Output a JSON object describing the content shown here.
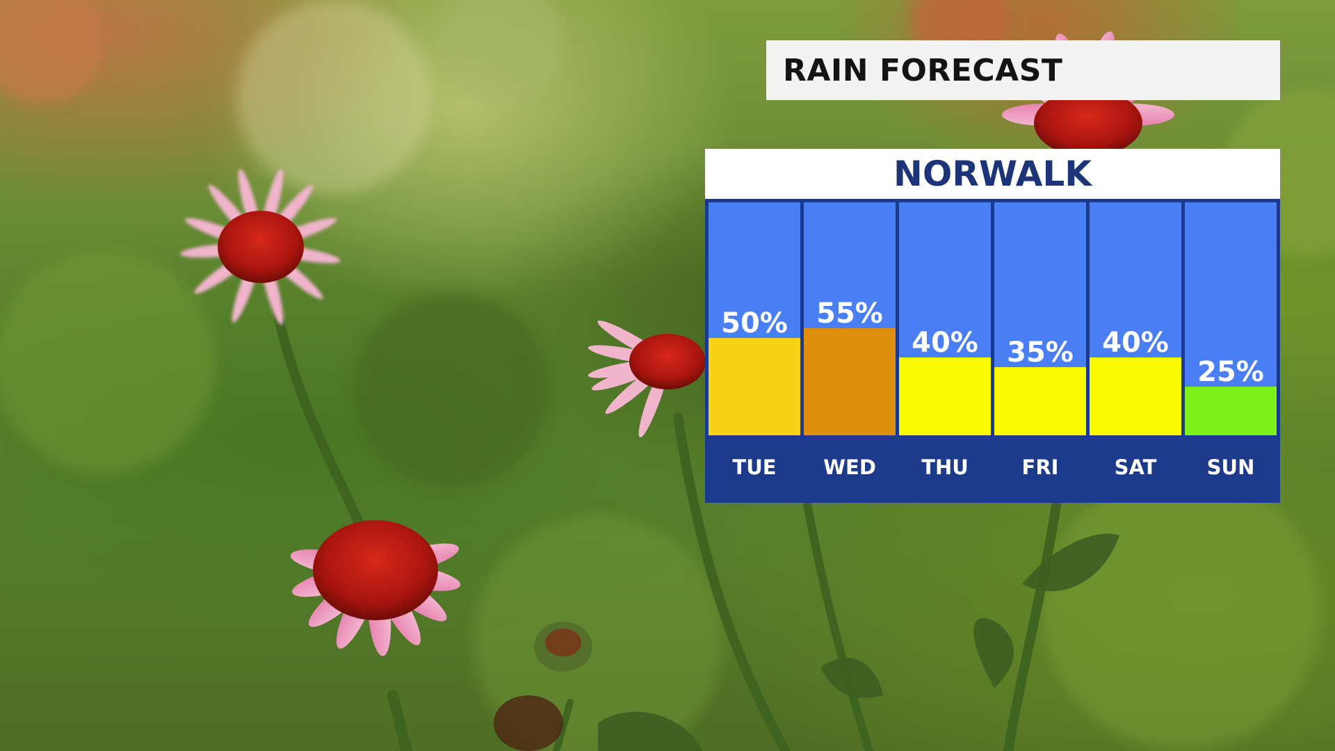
{
  "title": "RAIN FORECAST",
  "location": "NORWALK",
  "colors": {
    "panel_background": "#4a7ef5",
    "panel_border": "#1a3a8e",
    "day_strip": "#1e3a8a",
    "title_text": "#141414",
    "location_text": "#1d3478"
  },
  "chart_data": {
    "type": "bar",
    "title": "RAIN FORECAST",
    "subtitle": "NORWALK",
    "categories": [
      "TUE",
      "WED",
      "THU",
      "FRI",
      "SAT",
      "SUN"
    ],
    "values": [
      50,
      55,
      40,
      35,
      40,
      25
    ],
    "value_labels": [
      "50%",
      "55%",
      "40%",
      "35%",
      "40%",
      "25%"
    ],
    "bar_colors": [
      "#f6d316",
      "#de8f10",
      "#fafa05",
      "#fafa05",
      "#fafa05",
      "#7ef11a"
    ],
    "unit": "%",
    "ylim": [
      0,
      100
    ],
    "grid": false,
    "legend": "none"
  }
}
